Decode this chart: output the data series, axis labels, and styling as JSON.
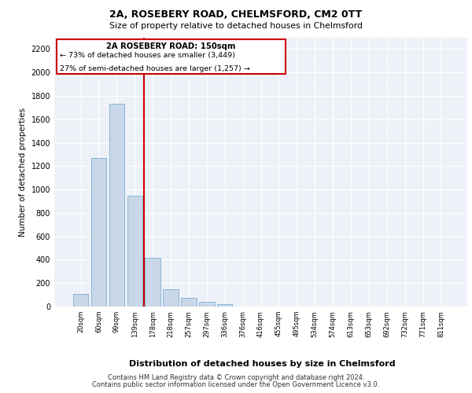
{
  "title1": "2A, ROSEBERY ROAD, CHELMSFORD, CM2 0TT",
  "title2": "Size of property relative to detached houses in Chelmsford",
  "xlabel": "Distribution of detached houses by size in Chelmsford",
  "ylabel": "Number of detached properties",
  "bar_labels": [
    "20sqm",
    "60sqm",
    "99sqm",
    "139sqm",
    "178sqm",
    "218sqm",
    "257sqm",
    "297sqm",
    "336sqm",
    "376sqm",
    "416sqm",
    "455sqm",
    "495sqm",
    "534sqm",
    "574sqm",
    "613sqm",
    "653sqm",
    "692sqm",
    "732sqm",
    "771sqm",
    "811sqm"
  ],
  "bar_values": [
    110,
    1270,
    1730,
    950,
    415,
    150,
    75,
    42,
    22,
    0,
    0,
    0,
    0,
    0,
    0,
    0,
    0,
    0,
    0,
    0,
    0
  ],
  "bar_color": "#c8d8e8",
  "bar_edgecolor": "#7bafd4",
  "vline_x": 3.5,
  "vline_color": "#cc0000",
  "ylim": [
    0,
    2300
  ],
  "yticks": [
    0,
    200,
    400,
    600,
    800,
    1000,
    1200,
    1400,
    1600,
    1800,
    2000,
    2200
  ],
  "annotation_title": "2A ROSEBERY ROAD: 150sqm",
  "annotation_line1": "← 73% of detached houses are smaller (3,449)",
  "annotation_line2": "27% of semi-detached houses are larger (1,257) →",
  "annotation_box_color": "#cc0000",
  "bg_color": "#eef2f8",
  "footer1": "Contains HM Land Registry data © Crown copyright and database right 2024.",
  "footer2": "Contains public sector information licensed under the Open Government Licence v3.0."
}
